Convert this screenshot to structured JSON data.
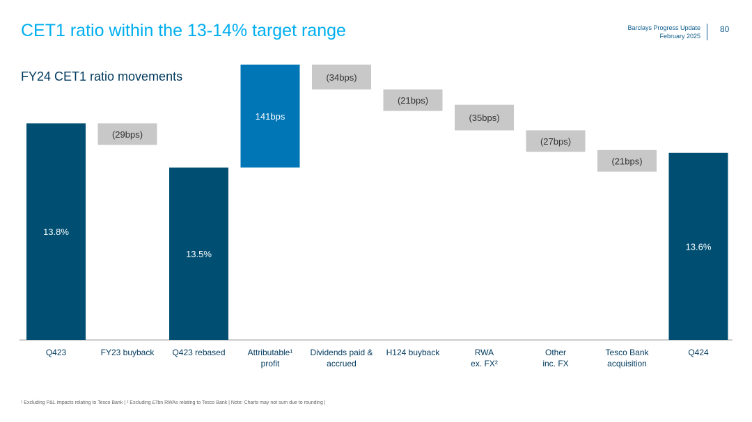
{
  "header": {
    "title": "CET1 ratio within the 13-14% target range",
    "doc_title": "Barclays Progress Update",
    "doc_date": "February 2025",
    "page_number": "80"
  },
  "subtitle": "FY24 CET1 ratio movements",
  "footnote": "¹ Excluding P&L impacts relating to Tesco Bank | ² Excluding £7bn RWAs relating to Tesco Bank | Note: Charts may not sum due to rounding |",
  "colors": {
    "total": "#004f73",
    "increase": "#0076b6",
    "decrease": "#c8c8c8",
    "axis": "#bbbbbb"
  },
  "chart_data": {
    "type": "bar",
    "subtype": "waterfall",
    "unit": "%",
    "categories": [
      [
        "Q423"
      ],
      [
        "FY23 buyback"
      ],
      [
        "Q423 rebased"
      ],
      [
        "Attributable¹",
        "profit"
      ],
      [
        "Dividends paid &",
        "accrued"
      ],
      [
        "H124 buyback"
      ],
      [
        "RWA",
        "ex. FX²"
      ],
      [
        "Other",
        "inc. FX"
      ],
      [
        "Tesco Bank",
        "acquisition"
      ],
      [
        "Q424"
      ]
    ],
    "bars": [
      {
        "kind": "total",
        "value": 13.8,
        "label": "13.8%"
      },
      {
        "kind": "change",
        "value": -0.29,
        "label": "(29bps)"
      },
      {
        "kind": "total",
        "value": 13.5,
        "label": "13.5%"
      },
      {
        "kind": "change",
        "value": 1.41,
        "label": "141bps"
      },
      {
        "kind": "change",
        "value": -0.34,
        "label": "(34bps)"
      },
      {
        "kind": "change",
        "value": -0.21,
        "label": "(21bps)"
      },
      {
        "kind": "change",
        "value": -0.35,
        "label": "(35bps)"
      },
      {
        "kind": "change",
        "value": -0.27,
        "label": "(27bps)"
      },
      {
        "kind": "change",
        "value": -0.21,
        "label": "(21bps)"
      },
      {
        "kind": "total",
        "value": 13.6,
        "label": "13.6%"
      }
    ]
  }
}
